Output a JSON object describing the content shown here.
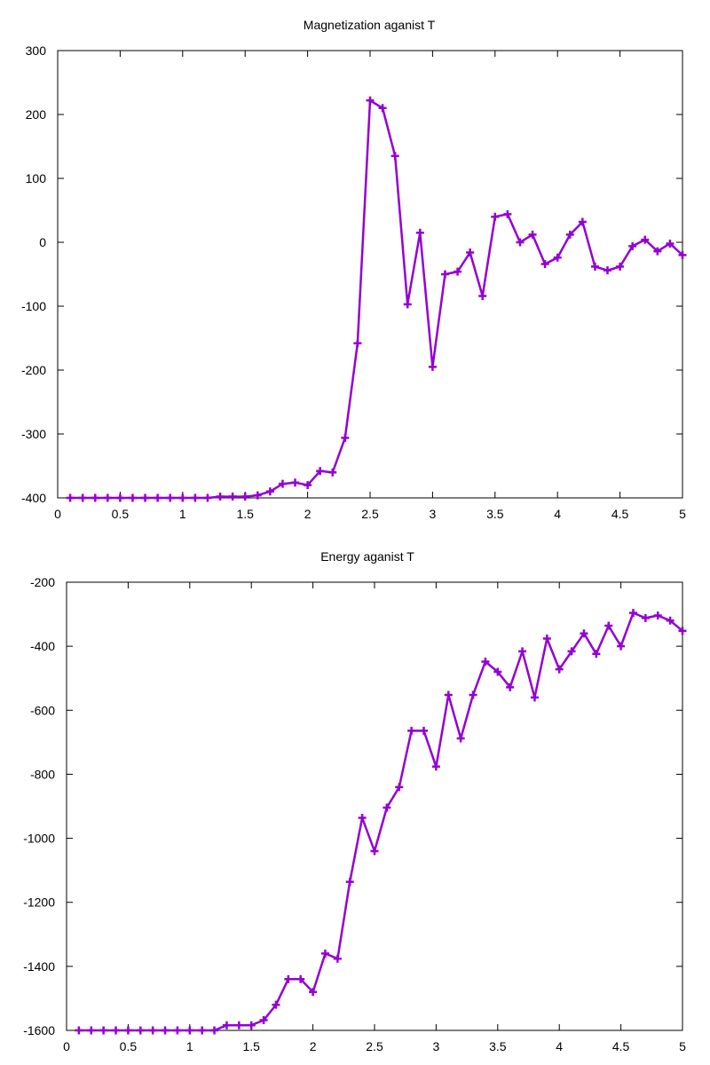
{
  "chart_data": [
    {
      "type": "line",
      "title": "Magnetization aganist T",
      "xlabel": "",
      "ylabel": "",
      "xlim": [
        0,
        5
      ],
      "ylim": [
        -400,
        300
      ],
      "xticks": [
        0,
        0.5,
        1,
        1.5,
        2,
        2.5,
        3,
        3.5,
        4,
        4.5,
        5
      ],
      "xtick_labels": [
        "0",
        "0.5",
        "1",
        "1.5",
        "2",
        "2.5",
        "3",
        "3.5",
        "4",
        "4.5",
        "5"
      ],
      "yticks": [
        -400,
        -300,
        -200,
        -100,
        0,
        100,
        200,
        300
      ],
      "ytick_labels": [
        "-400",
        "-300",
        "-200",
        "-100",
        "0",
        "100",
        "200",
        "300"
      ],
      "grid": false,
      "color": "#9400D3",
      "marker": "plus",
      "series": [
        {
          "x": [
            0.1,
            0.2,
            0.3,
            0.4,
            0.5,
            0.6,
            0.7,
            0.8,
            0.9,
            1.0,
            1.1,
            1.2,
            1.3,
            1.4,
            1.5,
            1.6,
            1.7,
            1.8,
            1.9,
            2.0,
            2.1,
            2.2,
            2.3,
            2.4,
            2.5,
            2.6,
            2.7,
            2.8,
            2.9,
            3.0,
            3.1,
            3.2,
            3.3,
            3.4,
            3.5,
            3.6,
            3.7,
            3.8,
            3.9,
            4.0,
            4.1,
            4.2,
            4.3,
            4.4,
            4.5,
            4.6,
            4.7,
            4.8,
            4.9,
            5.0
          ],
          "values": [
            -400,
            -400,
            -400,
            -400,
            -400,
            -400,
            -400,
            -400,
            -400,
            -400,
            -400,
            -400,
            -398,
            -398,
            -398,
            -396,
            -390,
            -378,
            -376,
            -380,
            -358,
            -360,
            -306,
            -158,
            222,
            210,
            135,
            -97,
            15,
            -195,
            -50,
            -46,
            -16,
            -84,
            40,
            44,
            0,
            12,
            -34,
            -24,
            12,
            32,
            -38,
            -44,
            -38,
            -6,
            4,
            -14,
            -2,
            -20
          ]
        }
      ]
    },
    {
      "type": "line",
      "title": "Energy aganist T",
      "xlabel": "",
      "ylabel": "",
      "xlim": [
        0,
        5
      ],
      "ylim": [
        -1600,
        -200
      ],
      "xticks": [
        0,
        0.5,
        1,
        1.5,
        2,
        2.5,
        3,
        3.5,
        4,
        4.5,
        5
      ],
      "xtick_labels": [
        "0",
        "0.5",
        "1",
        "1.5",
        "2",
        "2.5",
        "3",
        "3.5",
        "4",
        "4.5",
        "5"
      ],
      "yticks": [
        -1600,
        -1400,
        -1200,
        -1000,
        -800,
        -600,
        -400,
        -200
      ],
      "ytick_labels": [
        "-1600",
        "-1400",
        "-1200",
        "-1000",
        "-800",
        "-600",
        "-400",
        "-200"
      ],
      "grid": false,
      "color": "#9400D3",
      "marker": "plus",
      "series": [
        {
          "x": [
            0.1,
            0.2,
            0.3,
            0.4,
            0.5,
            0.6,
            0.7,
            0.8,
            0.9,
            1.0,
            1.1,
            1.2,
            1.3,
            1.4,
            1.5,
            1.6,
            1.7,
            1.8,
            1.9,
            2.0,
            2.1,
            2.2,
            2.3,
            2.4,
            2.5,
            2.6,
            2.7,
            2.8,
            2.9,
            3.0,
            3.1,
            3.2,
            3.3,
            3.4,
            3.5,
            3.6,
            3.7,
            3.8,
            3.9,
            4.0,
            4.1,
            4.2,
            4.3,
            4.4,
            4.5,
            4.6,
            4.7,
            4.8,
            4.9,
            5.0
          ],
          "values": [
            -1600,
            -1600,
            -1600,
            -1600,
            -1600,
            -1600,
            -1600,
            -1600,
            -1600,
            -1600,
            -1600,
            -1600,
            -1584,
            -1584,
            -1584,
            -1568,
            -1520,
            -1440,
            -1440,
            -1480,
            -1360,
            -1376,
            -1136,
            -936,
            -1040,
            -904,
            -840,
            -664,
            -664,
            -776,
            -552,
            -688,
            -552,
            -448,
            -480,
            -528,
            -416,
            -560,
            -376,
            -472,
            -416,
            -360,
            -424,
            -336,
            -400,
            -296,
            -312,
            -304,
            -320,
            -352
          ]
        }
      ]
    }
  ]
}
